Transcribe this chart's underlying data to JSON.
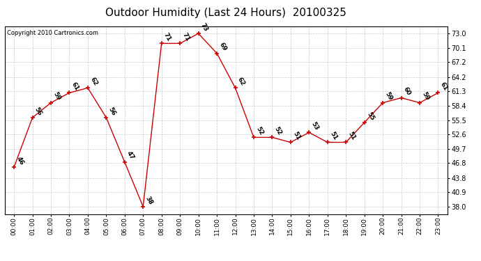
{
  "title": "Outdoor Humidity (Last 24 Hours)  20100325",
  "copyright": "Copyright 2010 Cartronics.com",
  "hours": [
    "00:00",
    "01:00",
    "02:00",
    "03:00",
    "04:00",
    "05:00",
    "06:00",
    "07:00",
    "08:00",
    "09:00",
    "10:00",
    "11:00",
    "12:00",
    "13:00",
    "14:00",
    "15:00",
    "16:00",
    "17:00",
    "18:00",
    "19:00",
    "20:00",
    "21:00",
    "22:00",
    "23:00"
  ],
  "values": [
    46,
    56,
    59,
    61,
    62,
    56,
    47,
    38,
    71,
    71,
    73,
    69,
    62,
    52,
    52,
    51,
    53,
    51,
    51,
    55,
    59,
    60,
    59,
    61
  ],
  "labels": [
    "46",
    "56",
    "59",
    "61",
    "62",
    "56",
    "47",
    "38",
    "71",
    "71",
    "73",
    "69",
    "62",
    "52",
    "52",
    "51",
    "53",
    "51",
    "51",
    "55",
    "59",
    "60",
    "59",
    "61"
  ],
  "line_color": "#cc0000",
  "marker_color": "#cc0000",
  "bg_color": "#ffffff",
  "plot_bg_color": "#ffffff",
  "grid_color": "#bbbbbb",
  "title_fontsize": 11,
  "label_fontsize": 6.5,
  "copyright_fontsize": 6,
  "yticks": [
    38.0,
    40.9,
    43.8,
    46.8,
    49.7,
    52.6,
    55.5,
    58.4,
    61.3,
    64.2,
    67.2,
    70.1,
    73.0
  ],
  "ymin": 36.5,
  "ymax": 74.5
}
